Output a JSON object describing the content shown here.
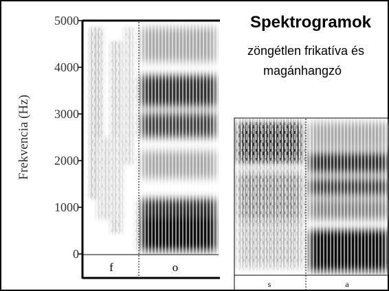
{
  "title": "Spektrogramok",
  "subtitle": [
    "zöngétlen frikatíva és",
    "magánhangzó"
  ],
  "left_spectrogram": {
    "y_label": "Frekvencia (Hz)",
    "yticks": [
      5000,
      4000,
      3000,
      2000,
      1000,
      0
    ],
    "segments": [
      "f",
      "o"
    ]
  },
  "right_spectrogram": {
    "segments": [
      "s",
      "a"
    ]
  }
}
